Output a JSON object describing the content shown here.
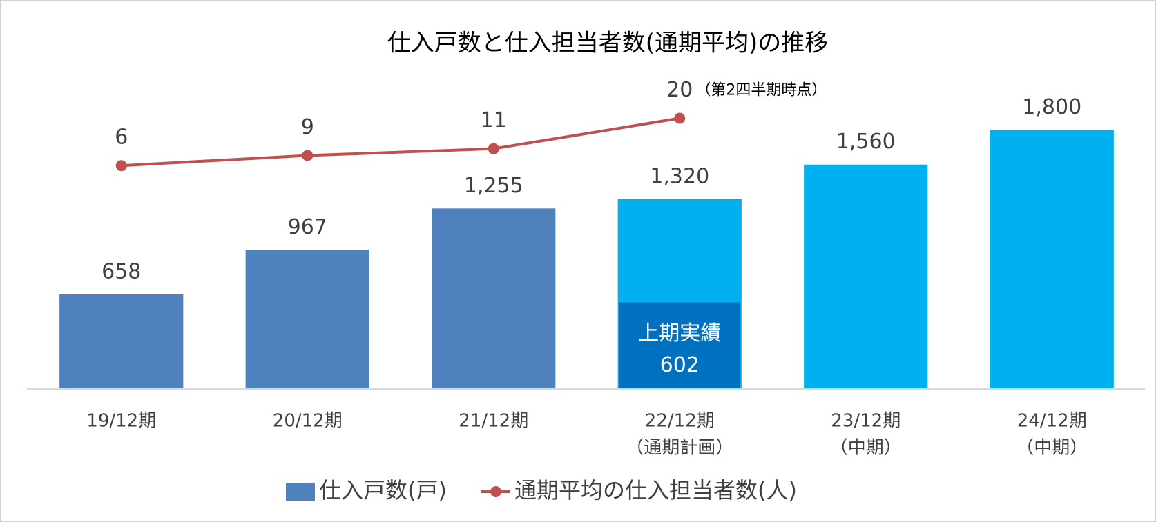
{
  "chart_data": {
    "type": "bar_line",
    "title": "仕入戸数と仕入担当者数(通期平均)の推移",
    "categories": [
      "19/12期",
      "20/12期",
      "21/12期",
      "22/12期",
      "23/12期",
      "24/12期"
    ],
    "category_sublabels": [
      null,
      null,
      null,
      "（通期計画）",
      "（中期）",
      "（中期）"
    ],
    "ylim": [
      0,
      2000
    ],
    "y2lim": [
      -60,
      25
    ],
    "series": [
      {
        "name": "仕入戸数(戸)",
        "type": "bar",
        "color": "#4f81bd",
        "colors": [
          "#4f81bd",
          "#4f81bd",
          "#4f81bd",
          "#00b0f0",
          "#00b0f0",
          "#00b0f0"
        ],
        "values": [
          658,
          967,
          1255,
          1320,
          1560,
          1800
        ],
        "value_labels": [
          "658",
          "967",
          "1,255",
          "1,320",
          "1,560",
          "1,800"
        ]
      },
      {
        "name": "通期平均の仕入担当者数(人)",
        "type": "line",
        "axis": "y2",
        "color": "#c0504d",
        "values": [
          6,
          9,
          11,
          20,
          null,
          null
        ]
      }
    ],
    "highlight": {
      "name": "上期実績",
      "color": "#0070c0",
      "values": [
        null,
        null,
        null,
        602,
        null,
        null
      ]
    },
    "annotation": "（第2四半期時点）",
    "legend": "bottom"
  }
}
